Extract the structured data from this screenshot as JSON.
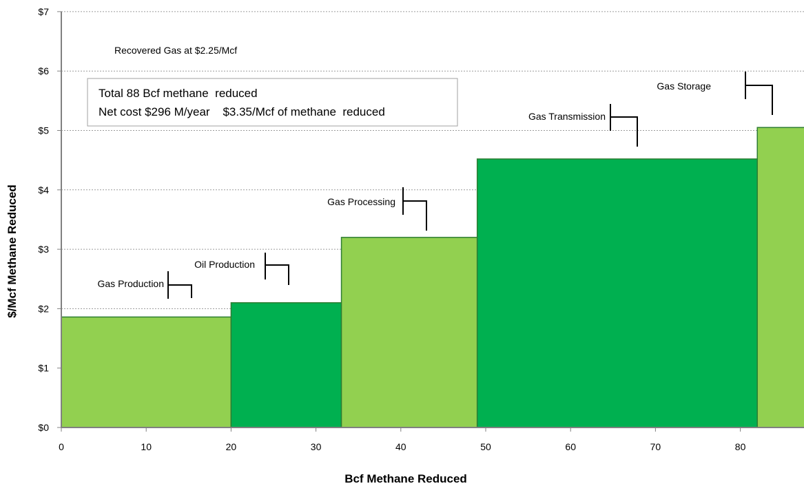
{
  "chart_data": {
    "type": "bar",
    "subtype": "variable-width step (marginal abatement cost curve)",
    "xlabel": "Bcf Methane Reduced",
    "ylabel": "$/Mcf Methane Reduced",
    "xlim": [
      0,
      88
    ],
    "ylim": [
      0,
      7
    ],
    "x_ticks": [
      {
        "value": 0,
        "label": "0"
      },
      {
        "value": 10,
        "label": "10"
      },
      {
        "value": 20,
        "label": "20"
      },
      {
        "value": 30,
        "label": "30"
      },
      {
        "value": 40,
        "label": "40"
      },
      {
        "value": 50,
        "label": "50"
      },
      {
        "value": 60,
        "label": "60"
      },
      {
        "value": 70,
        "label": "70"
      },
      {
        "value": 80,
        "label": "80"
      }
    ],
    "y_ticks": [
      {
        "value": 0,
        "label": "$0"
      },
      {
        "value": 1,
        "label": "$1"
      },
      {
        "value": 2,
        "label": "$2"
      },
      {
        "value": 3,
        "label": "$3"
      },
      {
        "value": 4,
        "label": "$4"
      },
      {
        "value": 5,
        "label": "$5"
      },
      {
        "value": 6,
        "label": "$6"
      },
      {
        "value": 7,
        "label": "$7"
      }
    ],
    "grid": "horizontal dotted",
    "segments": [
      {
        "label": "Gas Production",
        "x_start": 0,
        "x_end": 20,
        "value": 1.86,
        "color": "#92D050"
      },
      {
        "label": "Oil Production",
        "x_start": 20,
        "x_end": 33,
        "value": 2.1,
        "color": "#00B050"
      },
      {
        "label": "Gas Processing",
        "x_start": 33,
        "x_end": 49,
        "value": 3.2,
        "color": "#92D050"
      },
      {
        "label": "Gas Transmission",
        "x_start": 49,
        "x_end": 82,
        "value": 4.52,
        "color": "#00B050"
      },
      {
        "label": "Gas Storage",
        "x_start": 82,
        "x_end": 88,
        "value": 5.05,
        "color": "#92D050"
      }
    ],
    "annotations": {
      "recovered_gas": "Recovered Gas at $2.25/Mcf",
      "summary_line1": "Total 88 Bcf methane  reduced",
      "summary_line2": "Net cost $296 M/year    $3.35/Mcf of methane  reduced"
    },
    "segment_border_color": "#2E7D32"
  }
}
